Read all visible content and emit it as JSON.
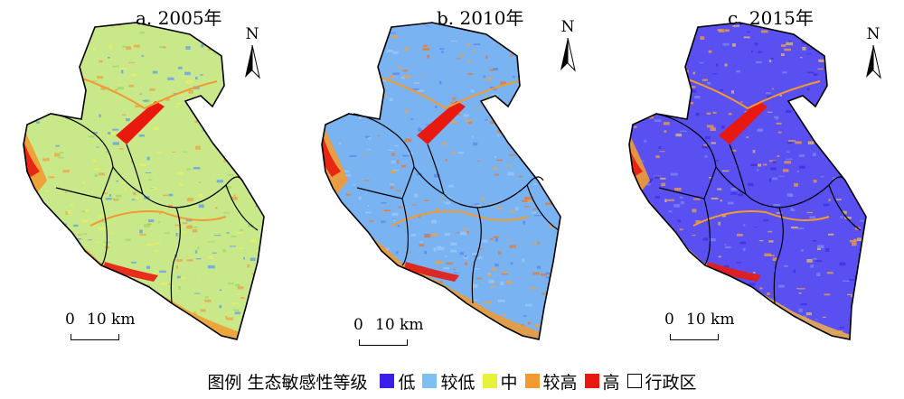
{
  "panels": [
    {
      "title": "a. 2005年",
      "base": "#c9e88a",
      "pal": [
        "#5b9cf0",
        "#9ad96c",
        "#e8f060",
        "#f0a040"
      ]
    },
    {
      "title": "b. 2010年",
      "base": "#7ab3f2",
      "pal": [
        "#5b86ee",
        "#9fc8f6",
        "#f0a040",
        "#e47a30"
      ]
    },
    {
      "title": "c. 2015年",
      "base": "#5a4ff0",
      "pal": [
        "#3b2fe0",
        "#7b8cf2",
        "#f0a040",
        "#e8c060"
      ]
    }
  ],
  "north_label": "N",
  "scale": {
    "zero": "0",
    "label": "10 km"
  },
  "legend": {
    "title": "图例 生态敏感性等级",
    "items": [
      {
        "label": "低",
        "color": "#3b1fe8"
      },
      {
        "label": "较低",
        "color": "#7cc0f4"
      },
      {
        "label": "中",
        "color": "#e8f23a"
      },
      {
        "label": "较高",
        "color": "#f29a30"
      },
      {
        "label": "高",
        "color": "#e81a10"
      },
      {
        "label": "行政区",
        "color": "#ffffff"
      }
    ]
  }
}
